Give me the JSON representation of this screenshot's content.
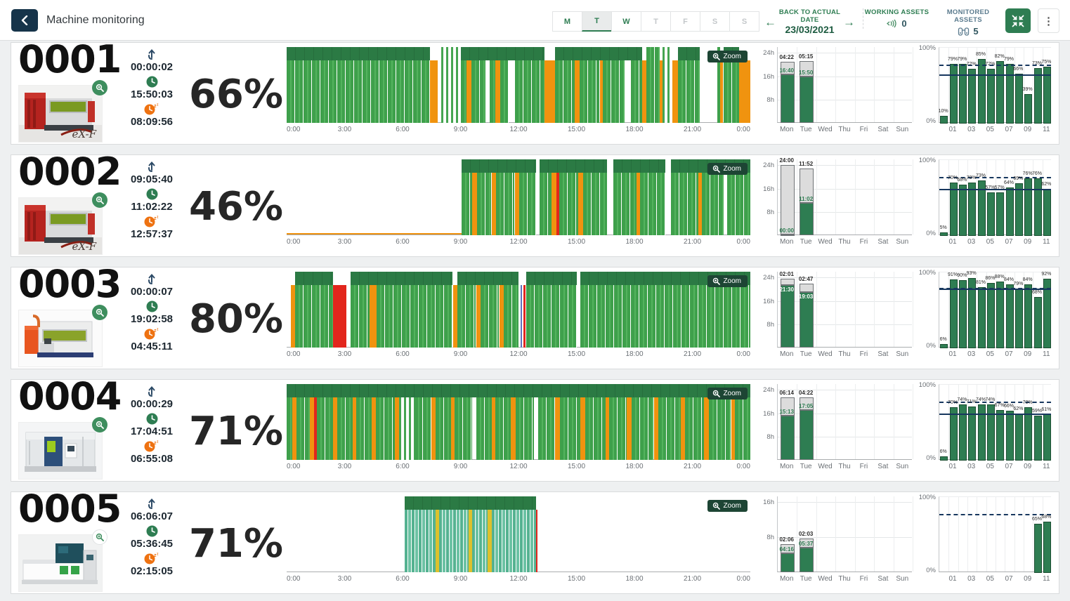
{
  "header": {
    "title": "Machine monitoring",
    "days": [
      {
        "label": "M",
        "state": "active"
      },
      {
        "label": "T",
        "state": "selected"
      },
      {
        "label": "W",
        "state": "active"
      },
      {
        "label": "T",
        "state": "inactive"
      },
      {
        "label": "F",
        "state": "inactive"
      },
      {
        "label": "S",
        "state": "inactive"
      },
      {
        "label": "S",
        "state": "inactive"
      }
    ],
    "date_nav": {
      "label": "BACK TO ACTUAL DATE",
      "date": "23/03/2021",
      "prev": "←",
      "next": "→"
    },
    "working_assets": {
      "label": "WORKING ASSETS",
      "value": "0",
      "icon": "volume-icon"
    },
    "monitored_assets": {
      "label": "MONITORED ASSETS",
      "value": "5",
      "icon": "binoculars-icon"
    },
    "kebab": "⋮"
  },
  "colors": {
    "accent_green": "#2e7d52",
    "navy": "#16344a",
    "slate": "#5b7b8e",
    "run_green": "#3ea04b",
    "cap_green": "#2b7a44",
    "setup_orange": "#f0930f",
    "error_red": "#e2261d",
    "teal_run": "#55b291",
    "yellow": "#ddc12d",
    "trend_navy": "#17375e"
  },
  "zoom_button_label": "Zoom",
  "timeline_axis": [
    "0:00",
    "3:00",
    "6:00",
    "9:00",
    "12:00",
    "15:00",
    "18:00",
    "21:00",
    "0:00"
  ],
  "week_days": [
    "Mon",
    "Tue",
    "Wed",
    "Thu",
    "Fri",
    "Sat",
    "Sun"
  ],
  "month_ticks": [
    "01",
    "03",
    "05",
    "07",
    "09",
    "11"
  ],
  "month_axis": {
    "top": "100%",
    "bottom": "0%"
  },
  "machines": [
    {
      "id": "0001",
      "image": "red-exf",
      "logo": "eX-F",
      "percent": "66%",
      "timers": {
        "off": "00:00:02",
        "run": "15:50:03",
        "idle": "08:09:56"
      },
      "timeline": {
        "segments": [
          [
            0,
            7.4,
            "run"
          ],
          [
            7.4,
            7.8,
            "setup"
          ],
          [
            8.0,
            9.0,
            "sparse"
          ],
          [
            9.0,
            9.3,
            "run"
          ],
          [
            9.3,
            9.55,
            "setup"
          ],
          [
            9.55,
            10.3,
            "run"
          ],
          [
            10.5,
            10.8,
            "run"
          ],
          [
            10.8,
            11.05,
            "setup"
          ],
          [
            11.05,
            11.5,
            "run"
          ],
          [
            11.8,
            13.35,
            "run"
          ],
          [
            13.35,
            13.9,
            "setup"
          ],
          [
            13.9,
            14.9,
            "run"
          ],
          [
            14.9,
            15.15,
            "setup"
          ],
          [
            15.15,
            16.2,
            "run"
          ],
          [
            16.2,
            16.35,
            "setup"
          ],
          [
            16.35,
            17.5,
            "run"
          ],
          [
            17.8,
            18.4,
            "run"
          ],
          [
            18.4,
            18.6,
            "setup"
          ],
          [
            18.6,
            19.3,
            "run"
          ],
          [
            19.3,
            19.45,
            "setup"
          ],
          [
            19.45,
            19.95,
            "sparse"
          ],
          [
            19.95,
            20.25,
            "setup"
          ],
          [
            20.25,
            21.4,
            "run"
          ],
          [
            22.3,
            22.45,
            "run"
          ],
          [
            22.45,
            22.6,
            "setup"
          ],
          [
            22.6,
            23.4,
            "run"
          ],
          [
            23.4,
            24,
            "setup"
          ]
        ],
        "caps": [
          [
            0,
            7.4
          ],
          [
            9.0,
            13.35
          ],
          [
            13.9,
            18.4
          ],
          [
            20.25,
            21.4
          ],
          [
            22.6,
            23.4
          ]
        ],
        "baseline": null
      },
      "week": {
        "ticks": [
          "24h",
          "16h",
          "8h"
        ],
        "max": 26,
        "label_style": "green",
        "bars": [
          {
            "day": "Mon",
            "run_label": "16:40",
            "run_h": 16.67,
            "extra_label": "04:22",
            "extra_h": 4.37
          },
          {
            "day": "Tue",
            "run_label": "15:50",
            "run_h": 15.83,
            "extra_label": "05:15",
            "extra_h": 5.25
          }
        ]
      },
      "month": {
        "values": [
          10,
          79,
          79,
          72,
          85,
          72,
          82,
          79,
          66,
          39,
          73,
          75
        ],
        "dashed": 78,
        "solid": 65
      }
    },
    {
      "id": "0002",
      "image": "red-exf",
      "logo": "eX-F",
      "percent": "46%",
      "timers": {
        "off": "09:05:40",
        "run": "11:02:22",
        "idle": "12:57:37"
      },
      "timeline": {
        "segments": [
          [
            9.05,
            9.6,
            "run"
          ],
          [
            9.6,
            9.85,
            "setup"
          ],
          [
            9.85,
            10.6,
            "run"
          ],
          [
            10.6,
            10.85,
            "setup"
          ],
          [
            10.85,
            11.8,
            "run"
          ],
          [
            11.8,
            12.05,
            "setup"
          ],
          [
            12.05,
            12.9,
            "run"
          ],
          [
            13.1,
            13.7,
            "run"
          ],
          [
            13.7,
            13.95,
            "setup"
          ],
          [
            13.95,
            14.1,
            "error"
          ],
          [
            14.1,
            15.1,
            "run"
          ],
          [
            15.1,
            15.35,
            "setup"
          ],
          [
            15.35,
            16.6,
            "run"
          ],
          [
            16.9,
            18.1,
            "run"
          ],
          [
            18.1,
            18.3,
            "setup"
          ],
          [
            18.3,
            19.6,
            "run"
          ],
          [
            19.9,
            21.3,
            "run"
          ],
          [
            21.3,
            21.5,
            "setup"
          ],
          [
            21.5,
            22.6,
            "run"
          ],
          [
            22.8,
            24,
            "run"
          ]
        ],
        "caps": [
          [
            9.05,
            12.9
          ],
          [
            13.1,
            16.6
          ],
          [
            16.9,
            19.6
          ],
          [
            19.9,
            24
          ]
        ],
        "baseline": [
          0,
          9.05
        ]
      },
      "week": {
        "ticks": [
          "24h",
          "16h",
          "8h"
        ],
        "max": 26,
        "label_style": "green",
        "bars": [
          {
            "day": "Mon",
            "run_label": "00:00",
            "run_h": 0.3,
            "extra_label": "24:00",
            "extra_h": 23.7
          },
          {
            "day": "Tue",
            "run_label": "11:02",
            "run_h": 11.03,
            "extra_label": "11:52",
            "extra_h": 11.87
          }
        ]
      },
      "month": {
        "values": [
          5,
          70,
          68,
          70,
          73,
          57,
          57,
          64,
          69,
          76,
          76,
          62
        ],
        "dashed": 78,
        "solid": 62
      }
    },
    {
      "id": "0003",
      "image": "orange-white",
      "logo": "",
      "percent": "80%",
      "timers": {
        "off": "00:00:07",
        "run": "19:02:58",
        "idle": "04:45:11"
      },
      "timeline": {
        "segments": [
          [
            0.2,
            0.45,
            "setup"
          ],
          [
            0.45,
            2.4,
            "run"
          ],
          [
            2.4,
            3.1,
            "error"
          ],
          [
            3.3,
            4.3,
            "run"
          ],
          [
            4.3,
            4.65,
            "setup"
          ],
          [
            4.65,
            8.6,
            "run"
          ],
          [
            8.6,
            8.85,
            "setup"
          ],
          [
            8.85,
            9.8,
            "run"
          ],
          [
            9.8,
            10.05,
            "setup"
          ],
          [
            10.05,
            11.0,
            "run"
          ],
          [
            11.0,
            11.25,
            "setup"
          ],
          [
            11.25,
            12.0,
            "run"
          ],
          [
            12.1,
            12.2,
            "info"
          ],
          [
            12.25,
            12.35,
            "error"
          ],
          [
            12.4,
            15.0,
            "run"
          ],
          [
            15.2,
            24,
            "run"
          ]
        ],
        "caps": [
          [
            0.45,
            2.4
          ],
          [
            3.3,
            8.6
          ],
          [
            8.85,
            12.0
          ],
          [
            12.4,
            15.0
          ],
          [
            15.2,
            24
          ]
        ],
        "baseline": null
      },
      "week": {
        "ticks": [
          "24h",
          "16h",
          "8h"
        ],
        "max": 26,
        "label_style": "white",
        "bars": [
          {
            "day": "Mon",
            "run_label": "21:30",
            "run_h": 21.5,
            "extra_label": "02:01",
            "extra_h": 2.02
          },
          {
            "day": "Tue",
            "run_label": "19:03",
            "run_h": 19.05,
            "extra_label": "02:47",
            "extra_h": 2.78
          }
        ]
      },
      "month": {
        "values": [
          6,
          91,
          90,
          93,
          81,
          86,
          88,
          84,
          79,
          84,
          68,
          92
        ],
        "dashed": 80,
        "solid": 79
      }
    },
    {
      "id": "0004",
      "image": "blue-white",
      "logo": "",
      "percent": "71%",
      "timers": {
        "off": "00:00:29",
        "run": "17:04:51",
        "idle": "06:55:08"
      },
      "timeline": {
        "segments": [
          [
            0,
            0.3,
            "run"
          ],
          [
            0.3,
            0.5,
            "setup"
          ],
          [
            0.5,
            1.2,
            "run"
          ],
          [
            1.2,
            1.4,
            "setup"
          ],
          [
            1.4,
            1.55,
            "error"
          ],
          [
            1.55,
            2.4,
            "run"
          ],
          [
            2.4,
            2.6,
            "setup"
          ],
          [
            2.6,
            3.4,
            "run"
          ],
          [
            3.4,
            3.6,
            "setup"
          ],
          [
            3.6,
            4.4,
            "run"
          ],
          [
            4.4,
            4.6,
            "setup"
          ],
          [
            4.6,
            5.6,
            "run"
          ],
          [
            5.6,
            5.8,
            "setup"
          ],
          [
            5.8,
            6.6,
            "sparse"
          ],
          [
            6.6,
            7.5,
            "run"
          ],
          [
            7.5,
            7.7,
            "setup"
          ],
          [
            7.7,
            8.5,
            "run"
          ],
          [
            8.5,
            8.7,
            "setup"
          ],
          [
            8.7,
            9.6,
            "run"
          ],
          [
            9.8,
            10.6,
            "run"
          ],
          [
            10.6,
            10.8,
            "setup"
          ],
          [
            10.8,
            11.6,
            "run"
          ],
          [
            11.6,
            11.85,
            "setup"
          ],
          [
            11.85,
            12.8,
            "run"
          ],
          [
            13.0,
            13.9,
            "run"
          ],
          [
            13.9,
            14.15,
            "setup"
          ],
          [
            14.15,
            15.2,
            "run"
          ],
          [
            15.2,
            15.45,
            "setup"
          ],
          [
            15.45,
            16.5,
            "run"
          ],
          [
            16.5,
            16.7,
            "setup"
          ],
          [
            16.7,
            17.6,
            "run"
          ],
          [
            17.6,
            17.85,
            "setup"
          ],
          [
            17.85,
            19.0,
            "run"
          ],
          [
            19.0,
            19.25,
            "setup"
          ],
          [
            19.25,
            20.4,
            "run"
          ],
          [
            20.4,
            20.6,
            "setup"
          ],
          [
            20.6,
            21.6,
            "run"
          ],
          [
            21.6,
            21.85,
            "setup"
          ],
          [
            21.85,
            23.0,
            "run"
          ],
          [
            23.0,
            23.2,
            "setup"
          ],
          [
            23.2,
            24,
            "run"
          ]
        ],
        "caps": [
          [
            0,
            24
          ]
        ],
        "baseline": null
      },
      "week": {
        "ticks": [
          "24h",
          "16h",
          "8h"
        ],
        "max": 26,
        "label_style": "green",
        "bars": [
          {
            "day": "Mon",
            "run_label": "15:13",
            "run_h": 15.22,
            "extra_label": "06:14",
            "extra_h": 6.23
          },
          {
            "day": "Tue",
            "run_label": "17:05",
            "run_h": 17.08,
            "extra_label": "04:22",
            "extra_h": 4.37
          }
        ]
      },
      "month": {
        "values": [
          6,
          70,
          74,
          71,
          74,
          74,
          67,
          66,
          62,
          70,
          59,
          61
        ],
        "dashed": 78,
        "solid": 62
      }
    },
    {
      "id": "0005",
      "image": "teal-white",
      "logo": "",
      "percent": "71%",
      "timers": {
        "off": "06:06:07",
        "run": "05:36:45",
        "idle": "02:15:05"
      },
      "timeline": {
        "segments": [
          [
            6.1,
            7.7,
            "teal"
          ],
          [
            7.7,
            7.9,
            "yellow"
          ],
          [
            7.9,
            9.4,
            "teal"
          ],
          [
            9.4,
            9.6,
            "yellow"
          ],
          [
            9.6,
            10.4,
            "teal"
          ],
          [
            10.4,
            10.6,
            "yellow"
          ],
          [
            10.6,
            12.9,
            "teal"
          ],
          [
            12.9,
            13.0,
            "error"
          ]
        ],
        "caps": [
          [
            6.1,
            12.9
          ]
        ],
        "baseline": null
      },
      "week": {
        "ticks": [
          "16h",
          "8h"
        ],
        "max": 17.33,
        "label_style": "green",
        "bars": [
          {
            "day": "Mon",
            "run_label": "04:16",
            "run_h": 4.27,
            "extra_label": "02:06",
            "extra_h": 2.1
          },
          {
            "day": "Tue",
            "run_label": "05:37",
            "run_h": 5.62,
            "extra_label": "02:03",
            "extra_h": 2.05
          }
        ]
      },
      "month": {
        "values": [
          0,
          0,
          0,
          0,
          0,
          0,
          0,
          0,
          0,
          0,
          65,
          68
        ],
        "dashed": 78,
        "solid": null
      }
    }
  ]
}
